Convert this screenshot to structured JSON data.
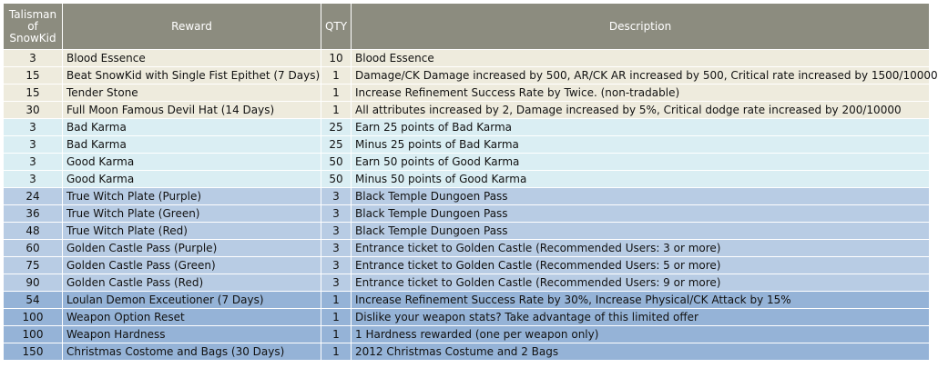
{
  "table": {
    "headers": {
      "talisman": [
        "Talisman",
        "of",
        "SnowKid"
      ],
      "reward": "Reward",
      "qty": "QTY",
      "description": "Description"
    },
    "groups": [
      {
        "color": "#eeebdd",
        "rows": [
          {
            "talisman": "3",
            "reward": "Blood Essence",
            "qty": "10",
            "description": "Blood Essence"
          },
          {
            "talisman": "15",
            "reward": "Beat SnowKid with Single Fist Epithet (7 Days)",
            "qty": "1",
            "description": "Damage/CK Damage increased by 500, AR/CK AR increased by 500, Critical rate increased by 1500/10000"
          },
          {
            "talisman": "15",
            "reward": "Tender Stone",
            "qty": "1",
            "description": "Increase Refinement Success Rate by Twice. (non-tradable)"
          },
          {
            "talisman": "30",
            "reward": "Full Moon Famous Devil Hat (14 Days)",
            "qty": "1",
            "description": "All attributes increased by 2, Damage increased by 5%, Critical dodge rate increased by 200/10000"
          }
        ]
      },
      {
        "color": "#daeef3",
        "rows": [
          {
            "talisman": "3",
            "reward": "Bad Karma",
            "qty": "25",
            "description": "Earn 25 points of Bad Karma"
          },
          {
            "talisman": "3",
            "reward": "Bad Karma",
            "qty": "25",
            "description": "Minus 25 points of Bad Karma"
          },
          {
            "talisman": "3",
            "reward": "Good Karma",
            "qty": "50",
            "description": "Earn 50 points of Good Karma"
          },
          {
            "talisman": "3",
            "reward": "Good Karma",
            "qty": "50",
            "description": "Minus 50 points of Good Karma"
          }
        ]
      },
      {
        "color": "#b8cce4",
        "rows": [
          {
            "talisman": "24",
            "reward": "True Witch Plate (Purple)",
            "qty": "3",
            "description": "Black Temple Dungoen Pass"
          },
          {
            "talisman": "36",
            "reward": "True Witch Plate (Green)",
            "qty": "3",
            "description": "Black Temple Dungoen Pass"
          },
          {
            "talisman": "48",
            "reward": "True Witch Plate (Red)",
            "qty": "3",
            "description": "Black Temple Dungoen Pass"
          },
          {
            "talisman": "60",
            "reward": "Golden Castle Pass (Purple)",
            "qty": "3",
            "description": "Entrance ticket to Golden Castle (Recommended Users: 3 or more)"
          },
          {
            "talisman": "75",
            "reward": "Golden Castle Pass (Green)",
            "qty": "3",
            "description": "Entrance ticket to Golden Castle (Recommended Users: 5 or more)"
          },
          {
            "talisman": "90",
            "reward": "Golden Castle Pass (Red)",
            "qty": "3",
            "description": "Entrance ticket to Golden Castle (Recommended Users: 9 or more)"
          }
        ]
      },
      {
        "color": "#95b3d7",
        "rows": [
          {
            "talisman": "54",
            "reward": "Loulan Demon Exceutioner (7 Days)",
            "qty": "1",
            "description": "Increase Refinement Success Rate by 30%, Increase Physical/CK Attack by 15%"
          },
          {
            "talisman": "100",
            "reward": "Weapon Option Reset",
            "qty": "1",
            "description": "Dislike your weapon stats? Take advantage of this limited offer"
          },
          {
            "talisman": "100",
            "reward": "Weapon Hardness",
            "qty": "1",
            "description": "1 Hardness rewarded (one per weapon only)"
          },
          {
            "talisman": "150",
            "reward": "Christmas Costome and Bags (30 Days)",
            "qty": "1",
            "description": "2012 Christmas Costume and 2 Bags"
          }
        ]
      }
    ]
  }
}
